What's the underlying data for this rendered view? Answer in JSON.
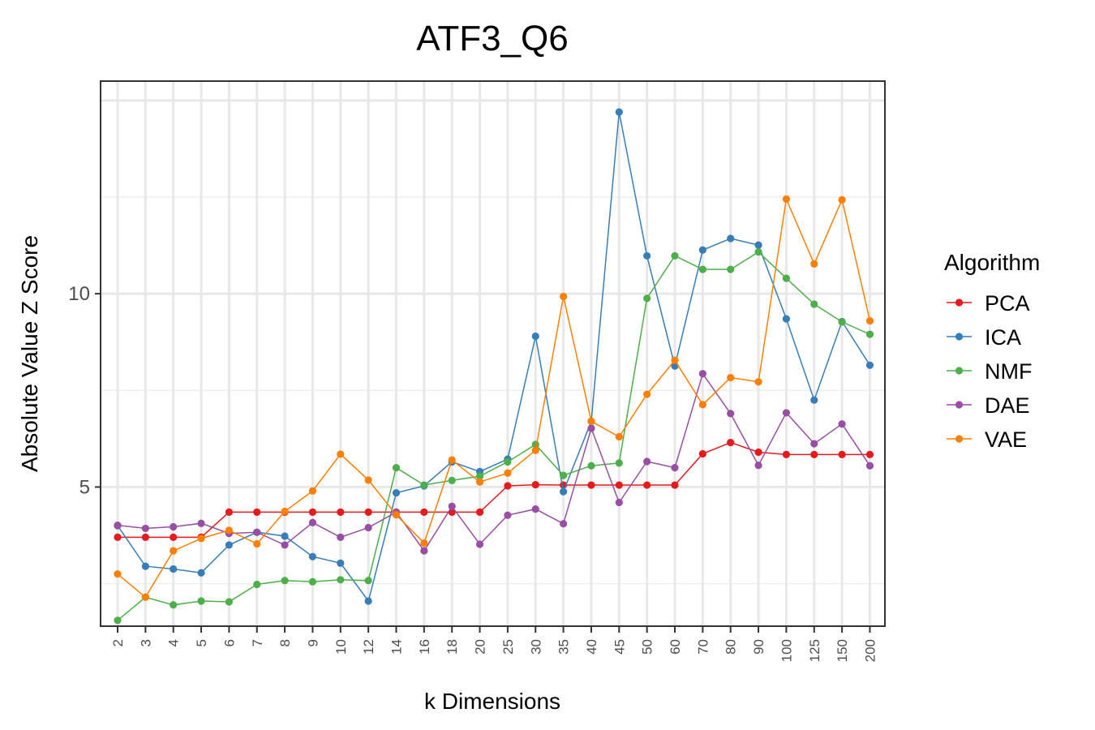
{
  "chart_data": {
    "type": "line",
    "title": "ATF3_Q6",
    "xlabel": "k Dimensions",
    "ylabel": "Absolute Value Z Score",
    "ylim": [
      1.4,
      15.5
    ],
    "yticks": [
      5,
      10
    ],
    "grid": true,
    "legend_title": "Algorithm",
    "legend_position": "right",
    "categories": [
      "2",
      "3",
      "4",
      "5",
      "6",
      "7",
      "8",
      "9",
      "10",
      "12",
      "14",
      "16",
      "18",
      "20",
      "25",
      "30",
      "35",
      "40",
      "45",
      "50",
      "60",
      "70",
      "80",
      "90",
      "100",
      "125",
      "150",
      "200"
    ],
    "series": [
      {
        "name": "PCA",
        "color": "#e41a1c",
        "values": [
          3.7,
          3.7,
          3.7,
          3.7,
          4.35,
          4.35,
          4.35,
          4.35,
          4.35,
          4.35,
          4.35,
          4.35,
          4.35,
          4.35,
          5.03,
          5.06,
          5.05,
          5.05,
          5.05,
          5.05,
          5.05,
          5.86,
          6.15,
          5.9,
          5.84,
          5.84,
          5.84,
          5.84
        ]
      },
      {
        "name": "ICA",
        "color": "#377eb8",
        "values": [
          4.0,
          2.95,
          2.88,
          2.78,
          3.5,
          3.83,
          3.73,
          3.2,
          3.03,
          2.05,
          4.85,
          5.03,
          5.65,
          5.4,
          5.72,
          8.9,
          4.88,
          6.7,
          14.7,
          10.98,
          8.13,
          11.13,
          11.43,
          11.26,
          9.35,
          7.25,
          9.28,
          8.15
        ]
      },
      {
        "name": "NMF",
        "color": "#4daf4a",
        "values": [
          1.55,
          2.15,
          1.95,
          2.05,
          2.03,
          2.48,
          2.58,
          2.55,
          2.6,
          2.58,
          5.5,
          5.05,
          5.17,
          5.28,
          5.65,
          6.1,
          5.3,
          5.55,
          5.62,
          9.88,
          10.98,
          10.63,
          10.63,
          11.08,
          10.4,
          9.73,
          9.27,
          8.95
        ]
      },
      {
        "name": "DAE",
        "color": "#984ea3",
        "values": [
          4.01,
          3.93,
          3.97,
          4.06,
          3.8,
          3.83,
          3.5,
          4.08,
          3.7,
          3.95,
          4.35,
          3.35,
          4.5,
          3.52,
          4.27,
          4.43,
          4.05,
          6.52,
          4.6,
          5.66,
          5.5,
          7.93,
          6.9,
          5.56,
          6.92,
          6.12,
          6.63,
          5.55
        ]
      },
      {
        "name": "VAE",
        "color": "#ff7f00",
        "values": [
          2.75,
          2.15,
          3.35,
          3.67,
          3.88,
          3.53,
          4.37,
          4.9,
          5.85,
          5.18,
          4.28,
          3.55,
          5.7,
          5.13,
          5.36,
          5.95,
          9.93,
          6.7,
          6.3,
          7.4,
          8.28,
          7.13,
          7.83,
          7.72,
          12.45,
          10.77,
          12.43,
          9.3
        ]
      }
    ]
  }
}
